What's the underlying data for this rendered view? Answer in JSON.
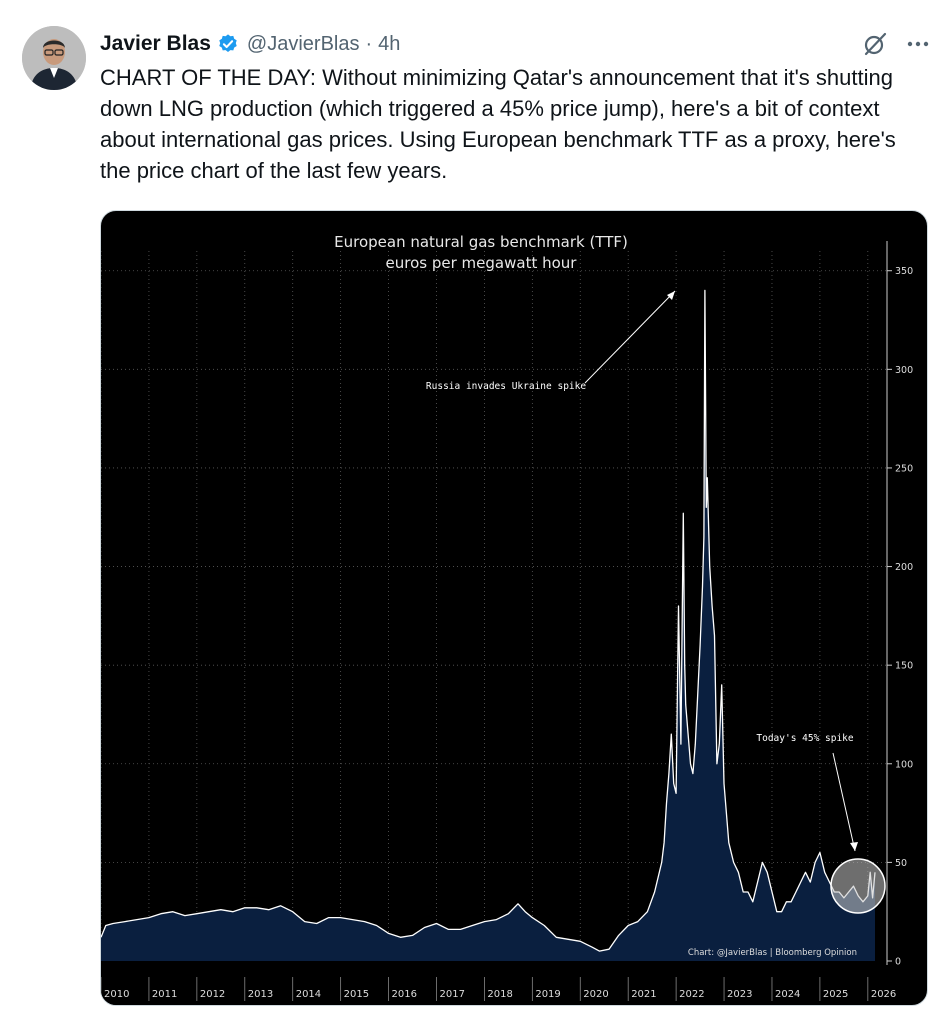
{
  "author": {
    "name": "Javier Blas",
    "handle": "@JavierBlas",
    "separator": "·",
    "time": "4h"
  },
  "tweet": {
    "text": "CHART OF THE DAY: Without minimizing Qatar's announcement that it's shutting down LNG production (which triggered a 45% price jump), here's a bit of context about international gas prices. Using European benchmark TTF as a proxy, here's the price chart of the last few years."
  },
  "colors": {
    "accent": "#1d9bf0",
    "chart_background": "#000000",
    "area_fill": "#0a1f3f",
    "line": "#ffffff"
  },
  "icons": [
    "verified-badge-icon",
    "grok-icon",
    "more-icon"
  ],
  "chart_data": {
    "type": "area",
    "title": "European natural gas benchmark (TTF)",
    "subtitle": "euros per megawatt hour",
    "credit": "Chart: @JavierBlas | Bloomberg Opinion",
    "ylim": [
      0,
      360
    ],
    "xlim": [
      2010.0,
      2026.4
    ],
    "y_ticks": [
      0,
      50,
      100,
      150,
      200,
      250,
      300,
      350
    ],
    "x_ticks": [
      "2010",
      "2011",
      "2012",
      "2013",
      "2014",
      "2015",
      "2016",
      "2017",
      "2018",
      "2019",
      "2020",
      "2021",
      "2022",
      "2023",
      "2024",
      "2025",
      "2026"
    ],
    "grid": true,
    "annotations": [
      {
        "text": "Russia invades Ukraine spike",
        "x": 2022.0,
        "y": 340
      },
      {
        "text": "Today's 45% spike",
        "x": 2026.05,
        "y": 45
      }
    ],
    "series": [
      {
        "x": [
          2010.0,
          2010.1,
          2010.25,
          2010.5,
          2010.75,
          2011.0,
          2011.25,
          2011.5,
          2011.75,
          2012.0,
          2012.25,
          2012.5,
          2012.75,
          2013.0,
          2013.25,
          2013.5,
          2013.75,
          2014.0,
          2014.25,
          2014.5,
          2014.75,
          2015.0,
          2015.25,
          2015.5,
          2015.75,
          2016.0,
          2016.25,
          2016.5,
          2016.75,
          2017.0,
          2017.25,
          2017.5,
          2017.75,
          2018.0,
          2018.25,
          2018.5,
          2018.7,
          2018.85,
          2019.0,
          2019.25,
          2019.5,
          2019.75,
          2020.0,
          2020.25,
          2020.4,
          2020.6,
          2020.8,
          2021.0,
          2021.2,
          2021.4,
          2021.55,
          2021.7,
          2021.75,
          2021.8,
          2021.85,
          2021.9,
          2021.95,
          2022.0,
          2022.05,
          2022.1,
          2022.15,
          2022.18,
          2022.2,
          2022.25,
          2022.3,
          2022.35,
          2022.4,
          2022.45,
          2022.5,
          2022.55,
          2022.58,
          2022.6,
          2022.63,
          2022.65,
          2022.7,
          2022.75,
          2022.8,
          2022.85,
          2022.9,
          2022.95,
          2023.0,
          2023.1,
          2023.2,
          2023.3,
          2023.4,
          2023.5,
          2023.6,
          2023.7,
          2023.8,
          2023.9,
          2024.0,
          2024.1,
          2024.2,
          2024.3,
          2024.4,
          2024.5,
          2024.6,
          2024.7,
          2024.8,
          2024.9,
          2025.0,
          2025.1,
          2025.2,
          2025.3,
          2025.4,
          2025.5,
          2025.6,
          2025.7,
          2025.8,
          2025.9,
          2026.0,
          2026.05,
          2026.1,
          2026.15
        ],
        "values": [
          12,
          18,
          19,
          20,
          21,
          22,
          24,
          25,
          23,
          24,
          25,
          26,
          25,
          27,
          27,
          26,
          28,
          25,
          20,
          19,
          22,
          22,
          21,
          20,
          18,
          14,
          12,
          13,
          17,
          19,
          16,
          16,
          18,
          20,
          21,
          24,
          29,
          25,
          22,
          18,
          12,
          11,
          10,
          7,
          5,
          6,
          13,
          18,
          20,
          25,
          35,
          50,
          60,
          80,
          95,
          115,
          90,
          85,
          180,
          110,
          227,
          150,
          130,
          115,
          100,
          95,
          110,
          135,
          160,
          190,
          215,
          340,
          230,
          245,
          200,
          180,
          165,
          100,
          110,
          140,
          90,
          60,
          50,
          45,
          35,
          35,
          30,
          40,
          50,
          45,
          35,
          25,
          25,
          30,
          30,
          35,
          40,
          45,
          40,
          50,
          55,
          45,
          40,
          35,
          35,
          32,
          35,
          38,
          33,
          30,
          33,
          45,
          32,
          45
        ]
      }
    ]
  }
}
